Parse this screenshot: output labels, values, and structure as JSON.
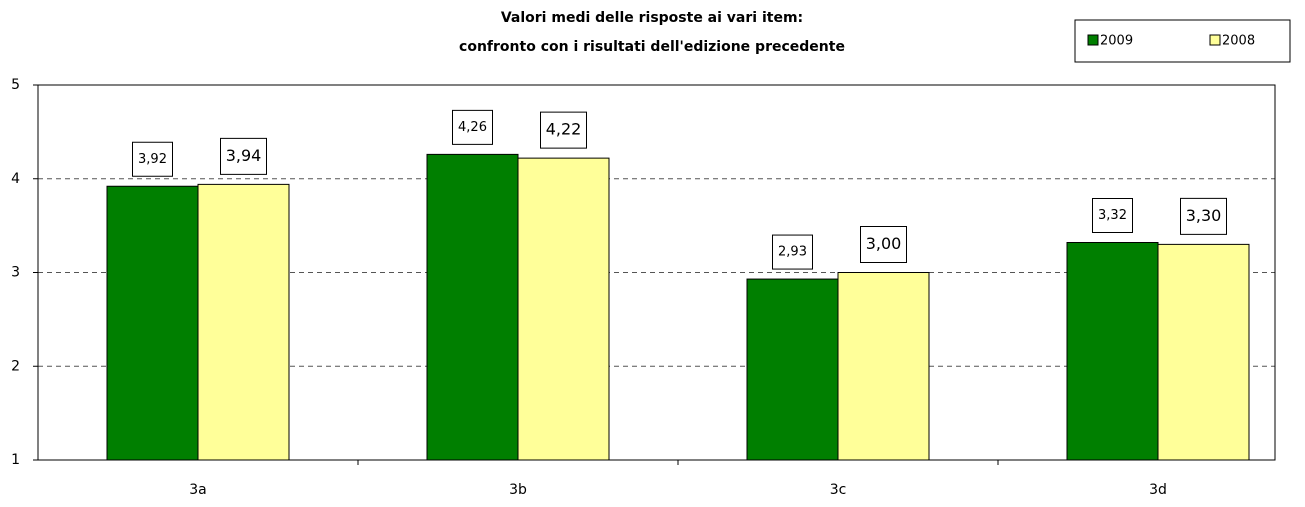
{
  "chart_data": {
    "type": "bar",
    "title": [
      "Valori medi delle risposte ai vari item:",
      "confronto con i risultati dell'edizione precedente"
    ],
    "categories": [
      "3a",
      "3b",
      "3c",
      "3d"
    ],
    "series": [
      {
        "name": "2009",
        "color": "#007f00",
        "values": [
          3.92,
          4.26,
          2.93,
          3.32
        ],
        "value_labels": [
          "3,92",
          "4,26",
          "2,93",
          "3,32"
        ]
      },
      {
        "name": "2008",
        "color": "#ffff99",
        "values": [
          3.94,
          4.22,
          3.0,
          3.3
        ],
        "value_labels": [
          "3,94",
          "4,22",
          "3,00",
          "3,30"
        ]
      }
    ],
    "ylim": [
      1,
      5
    ],
    "yticks": [
      1,
      2,
      3,
      4,
      5
    ],
    "grid": true,
    "legend": "top-right"
  }
}
